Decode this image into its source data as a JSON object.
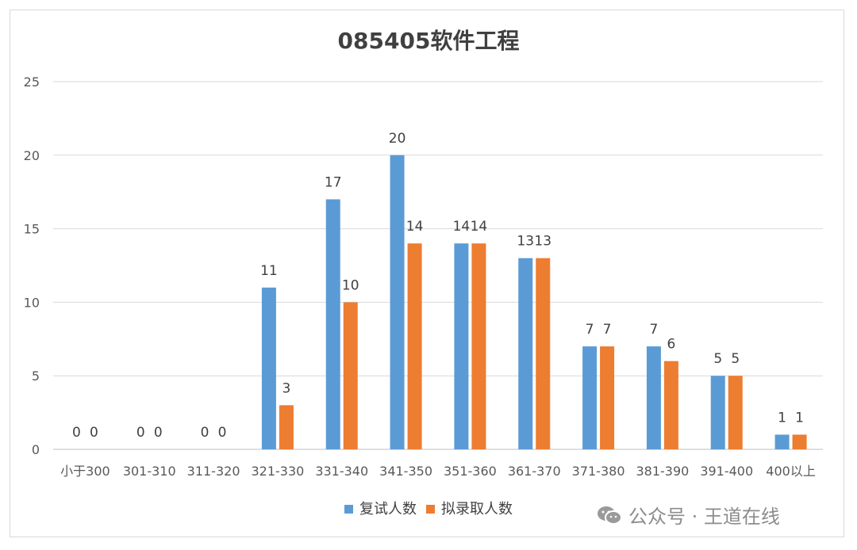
{
  "chart_data": {
    "type": "bar",
    "title": "085405软件工程",
    "categories": [
      "小于300",
      "301-310",
      "311-320",
      "321-330",
      "331-340",
      "341-350",
      "351-360",
      "361-370",
      "371-380",
      "381-390",
      "391-400",
      "400以上"
    ],
    "series": [
      {
        "name": "复试人数",
        "values": [
          0,
          0,
          0,
          11,
          17,
          20,
          14,
          13,
          7,
          7,
          5,
          1
        ],
        "color": "#5b9bd5"
      },
      {
        "name": "拟录取人数",
        "values": [
          0,
          0,
          0,
          3,
          10,
          14,
          14,
          13,
          7,
          6,
          5,
          1
        ],
        "color": "#ed7d31"
      }
    ],
    "ylim": [
      0,
      25
    ],
    "yticks": [
      0,
      5,
      10,
      15,
      20,
      25
    ],
    "grid": true,
    "legend_position": "bottom"
  },
  "watermark": {
    "text": "公众号 · 王道在线",
    "icon": "wechat-icon"
  }
}
